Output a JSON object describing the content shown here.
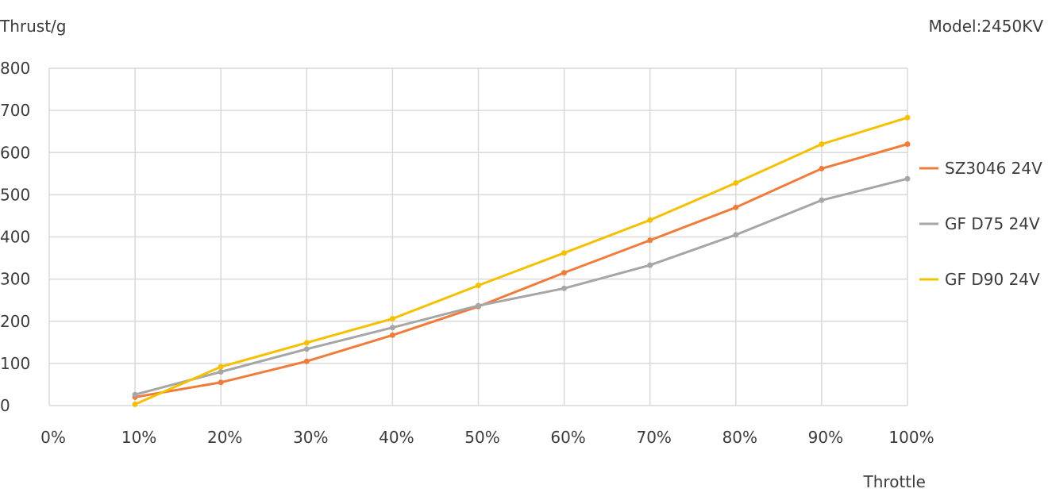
{
  "chart_data": {
    "type": "line",
    "ylabel": "Thrust/g",
    "xlabel": "Throttle",
    "annotation": "Model:2450KV",
    "x": [
      "0%",
      "10%",
      "20%",
      "30%",
      "40%",
      "50%",
      "60%",
      "70%",
      "80%",
      "90%",
      "100%"
    ],
    "ylim": [
      0,
      800
    ],
    "yticks": [
      "0",
      "100",
      "200",
      "300",
      "400",
      "500",
      "600",
      "700",
      "800"
    ],
    "grid": true,
    "legend": "right",
    "series": [
      {
        "name": "SZ3046 24V",
        "color": "#f07c3c",
        "values": [
          null,
          20,
          55,
          105,
          167,
          235,
          315,
          392,
          470,
          562,
          620
        ]
      },
      {
        "name": "GF D75 24V",
        "color": "#a6a6a6",
        "values": [
          null,
          26,
          80,
          134,
          185,
          237,
          278,
          333,
          405,
          487,
          538
        ]
      },
      {
        "name": "GF D90 24V",
        "color": "#f5c000",
        "values": [
          null,
          3,
          92,
          149,
          206,
          285,
          362,
          440,
          528,
          620,
          683
        ]
      }
    ]
  }
}
